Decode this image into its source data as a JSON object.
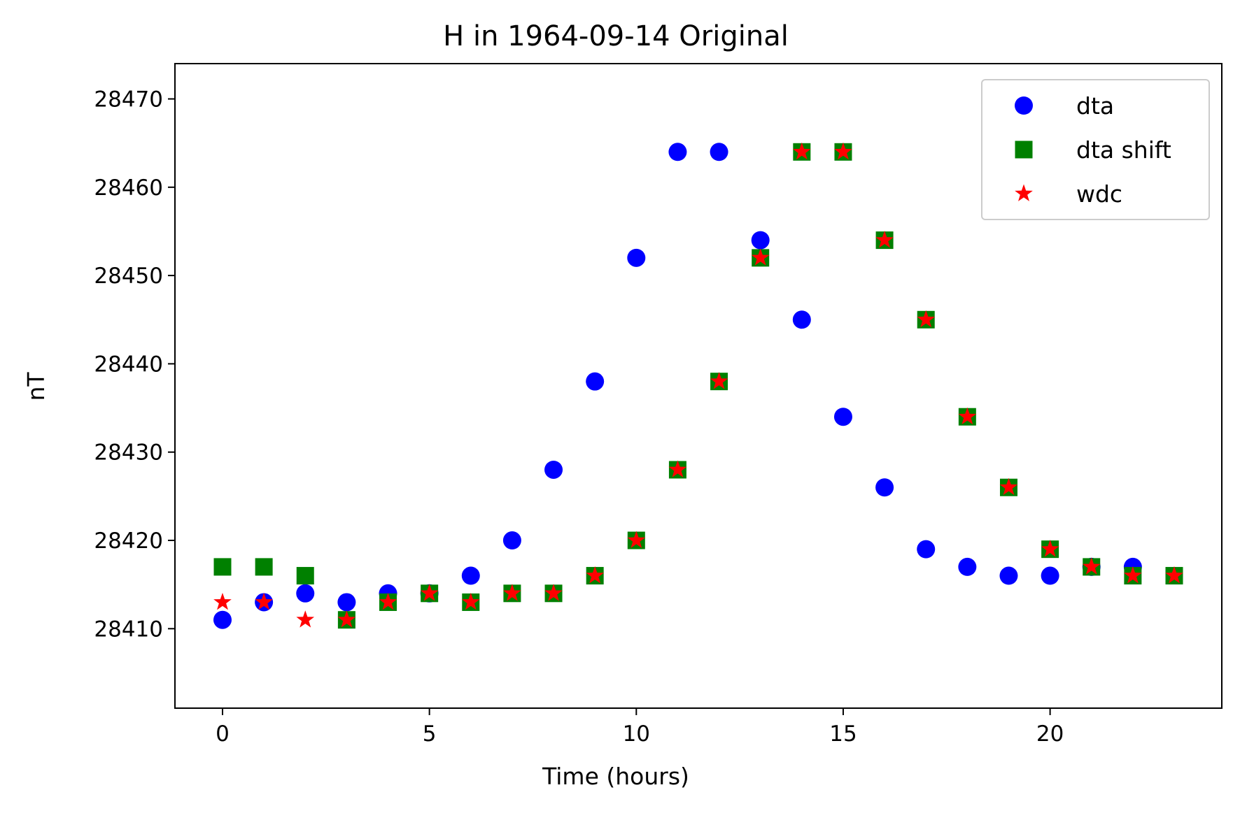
{
  "chart_data": {
    "type": "scatter",
    "title": "H in 1964-09-14 Original",
    "xlabel": "Time (hours)",
    "ylabel": "nT",
    "xlim": [
      -1.15,
      24.15
    ],
    "ylim": [
      28401,
      28474
    ],
    "xticks": [
      0,
      5,
      10,
      15,
      20
    ],
    "yticks": [
      28410,
      28420,
      28430,
      28440,
      28450,
      28460,
      28470
    ],
    "grid": false,
    "legend_position": "top-right",
    "series": [
      {
        "name": "dta",
        "marker": "circle",
        "color": "#0000ff",
        "x": [
          0,
          1,
          2,
          3,
          4,
          5,
          6,
          7,
          8,
          9,
          10,
          11,
          12,
          13,
          14,
          15,
          16,
          17,
          18,
          19,
          20,
          21,
          22
        ],
        "y": [
          28411,
          28413,
          28414,
          28413,
          28414,
          28414,
          28416,
          28420,
          28428,
          28438,
          28452,
          28464,
          28464,
          28454,
          28445,
          28434,
          28426,
          28419,
          28417,
          28416,
          28416,
          28417,
          28417
        ]
      },
      {
        "name": "dta shift",
        "marker": "square",
        "color": "#008000",
        "x": [
          0,
          1,
          2,
          3,
          4,
          5,
          6,
          7,
          8,
          9,
          10,
          11,
          12,
          13,
          14,
          15,
          16,
          17,
          18,
          19,
          20,
          21,
          22,
          23
        ],
        "y": [
          28417,
          28417,
          28416,
          28411,
          28413,
          28414,
          28413,
          28414,
          28414,
          28416,
          28420,
          28428,
          28438,
          28452,
          28464,
          28464,
          28454,
          28445,
          28434,
          28426,
          28419,
          28417,
          28416,
          28416
        ]
      },
      {
        "name": "wdc",
        "marker": "star",
        "color": "#ff0000",
        "x": [
          0,
          1,
          2,
          3,
          4,
          5,
          6,
          7,
          8,
          9,
          10,
          11,
          12,
          13,
          14,
          15,
          16,
          17,
          18,
          19,
          20,
          21,
          22,
          23
        ],
        "y": [
          28413,
          28413,
          28411,
          28411,
          28413,
          28414,
          28413,
          28414,
          28414,
          28416,
          28420,
          28428,
          28438,
          28452,
          28464,
          28464,
          28454,
          28445,
          28434,
          28426,
          28419,
          28417,
          28416,
          28416
        ]
      }
    ]
  }
}
